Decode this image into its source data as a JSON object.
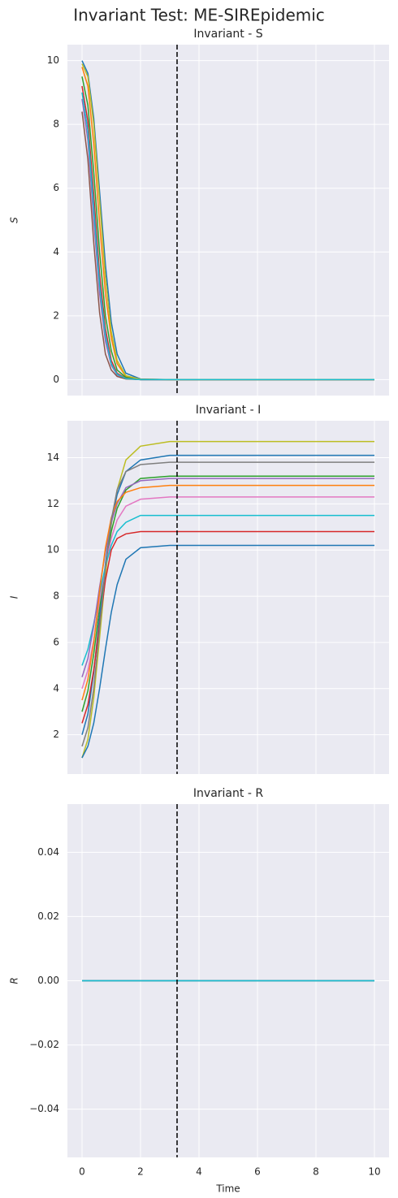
{
  "title": "Invariant Test: ME-SIREpidemic",
  "chart_data": [
    {
      "type": "line",
      "title": "Invariant - S",
      "ylabel": "S",
      "x": [
        0,
        0.2,
        0.4,
        0.6,
        0.8,
        1,
        1.2,
        1.5,
        2,
        3,
        4,
        6,
        8,
        10
      ],
      "series": [
        {
          "color": "#1f77b4",
          "values": [
            10,
            9.6,
            8.2,
            5.9,
            3.6,
            1.8,
            0.8,
            0.2,
            0.02,
            0,
            0,
            0,
            0,
            0
          ]
        },
        {
          "color": "#ff7f0e",
          "values": [
            9.8,
            9.2,
            7.4,
            4.9,
            2.7,
            1.3,
            0.5,
            0.1,
            0.01,
            0,
            0,
            0,
            0,
            0
          ]
        },
        {
          "color": "#2ca02c",
          "values": [
            9.5,
            8.6,
            6.5,
            4.0,
            2.0,
            0.9,
            0.3,
            0.07,
            0,
            0,
            0,
            0,
            0,
            0
          ]
        },
        {
          "color": "#d62728",
          "values": [
            9.2,
            8.1,
            5.8,
            3.3,
            1.6,
            0.6,
            0.2,
            0.04,
            0,
            0,
            0,
            0,
            0,
            0
          ]
        },
        {
          "color": "#9467bd",
          "values": [
            8.8,
            7.5,
            5.0,
            2.7,
            1.2,
            0.45,
            0.15,
            0.03,
            0,
            0,
            0,
            0,
            0,
            0
          ]
        },
        {
          "color": "#8c564b",
          "values": [
            8.4,
            6.9,
            4.3,
            2.1,
            0.8,
            0.3,
            0.1,
            0.02,
            0,
            0,
            0,
            0,
            0,
            0
          ]
        },
        {
          "color": "#bcbd22",
          "values": [
            9.9,
            9.5,
            8.0,
            5.6,
            3.2,
            1.5,
            0.6,
            0.12,
            0.01,
            0,
            0,
            0,
            0,
            0
          ]
        },
        {
          "color": "#17becf",
          "values": [
            9.0,
            7.8,
            5.4,
            3.0,
            1.4,
            0.5,
            0.17,
            0.03,
            0,
            0,
            0,
            0,
            0,
            0
          ]
        }
      ],
      "xlim": [
        -0.5,
        10.5
      ],
      "ylim": [
        -0.5,
        10.5
      ],
      "xticks": [
        0,
        2,
        4,
        6,
        8,
        10
      ],
      "yticks": [
        0,
        2,
        4,
        6,
        8,
        10
      ],
      "show_xticklabels": false,
      "grid": true,
      "vline": 3.25
    },
    {
      "type": "line",
      "title": "Invariant - I",
      "ylabel": "I",
      "x": [
        0,
        0.2,
        0.4,
        0.6,
        0.8,
        1,
        1.2,
        1.5,
        2,
        3,
        4,
        6,
        8,
        10
      ],
      "series": [
        {
          "color": "#bcbd22",
          "values": [
            1,
            1.8,
            3.6,
            6.2,
            8.9,
            11.1,
            12.6,
            13.9,
            14.5,
            14.7,
            14.7,
            14.7,
            14.7,
            14.7
          ]
        },
        {
          "color": "#1f77b4",
          "values": [
            2,
            2.9,
            4.7,
            7.1,
            9.4,
            11.2,
            12.4,
            13.4,
            13.9,
            14.1,
            14.1,
            14.1,
            14.1,
            14.1
          ]
        },
        {
          "color": "#2ca02c",
          "values": [
            3,
            3.9,
            5.5,
            7.5,
            9.3,
            10.8,
            11.8,
            12.6,
            13.1,
            13.2,
            13.2,
            13.2,
            13.2,
            13.2
          ]
        },
        {
          "color": "#e377c2",
          "values": [
            4,
            4.8,
            6.1,
            7.8,
            9.3,
            10.5,
            11.3,
            11.9,
            12.2,
            12.3,
            12.3,
            12.3,
            12.3,
            12.3
          ]
        },
        {
          "color": "#17becf",
          "values": [
            5,
            5.7,
            6.8,
            8.1,
            9.3,
            10.2,
            10.8,
            11.2,
            11.5,
            11.5,
            11.5,
            11.5,
            11.5,
            11.5
          ]
        },
        {
          "color": "#1f77b4",
          "values": [
            1,
            1.5,
            2.5,
            4.0,
            5.7,
            7.3,
            8.5,
            9.6,
            10.1,
            10.2,
            10.2,
            10.2,
            10.2,
            10.2
          ]
        },
        {
          "color": "#d62728",
          "values": [
            2.5,
            3.3,
            4.8,
            6.8,
            8.7,
            10.0,
            10.5,
            10.7,
            10.8,
            10.8,
            10.8,
            10.8,
            10.8,
            10.8
          ]
        },
        {
          "color": "#9467bd",
          "values": [
            4.5,
            5.3,
            6.7,
            8.4,
            9.9,
            11.2,
            12.0,
            12.7,
            13.0,
            13.1,
            13.1,
            13.1,
            13.1,
            13.1
          ]
        },
        {
          "color": "#ff7f0e",
          "values": [
            3.5,
            4.4,
            6.0,
            8.2,
            10.1,
            11.4,
            12.1,
            12.5,
            12.7,
            12.8,
            12.8,
            12.8,
            12.8,
            12.8
          ]
        },
        {
          "color": "#7f7f7f",
          "values": [
            1.5,
            2.3,
            4.0,
            6.6,
            9.2,
            11.3,
            12.6,
            13.4,
            13.7,
            13.8,
            13.8,
            13.8,
            13.8,
            13.8
          ]
        }
      ],
      "xlim": [
        -0.5,
        10.5
      ],
      "ylim": [
        0.3,
        15.6
      ],
      "xticks": [
        0,
        2,
        4,
        6,
        8,
        10
      ],
      "yticks": [
        2,
        4,
        6,
        8,
        10,
        12,
        14
      ],
      "show_xticklabels": false,
      "grid": true,
      "vline": 3.25
    },
    {
      "type": "line",
      "title": "Invariant - R",
      "ylabel": "R",
      "xlabel": "Time",
      "x": [
        0,
        2,
        4,
        6,
        8,
        10
      ],
      "series": [
        {
          "color": "#1f77b4",
          "values": [
            0,
            0,
            0,
            0,
            0,
            0
          ]
        },
        {
          "color": "#7f7f7f",
          "values": [
            0,
            0,
            0,
            0,
            0,
            0
          ]
        },
        {
          "color": "#17becf",
          "values": [
            0,
            0,
            0,
            0,
            0,
            0
          ]
        }
      ],
      "xlim": [
        -0.5,
        10.5
      ],
      "ylim": [
        -0.055,
        0.055
      ],
      "xticks": [
        0,
        2,
        4,
        6,
        8,
        10
      ],
      "yticks": [
        {
          "value": -0.04,
          "label": "−0.04"
        },
        {
          "value": -0.02,
          "label": "−0.02"
        },
        {
          "value": 0,
          "label": "0.00"
        },
        {
          "value": 0.02,
          "label": "0.02"
        },
        {
          "value": 0.04,
          "label": "0.04"
        }
      ],
      "show_xticklabels": true,
      "grid": true,
      "vline": 3.25
    }
  ]
}
